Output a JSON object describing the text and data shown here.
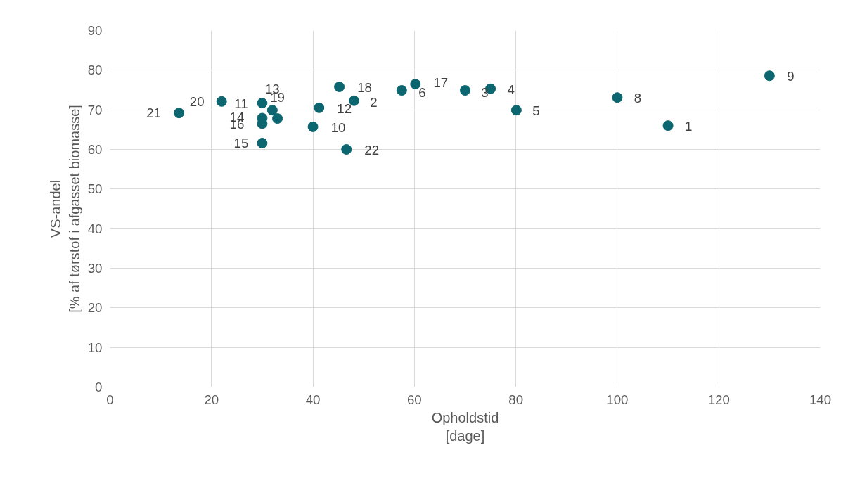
{
  "chart_data": {
    "type": "scatter",
    "xlabel": "Opholdstid\n[dage]",
    "ylabel": "VS-andel\n[% af tørstof i afgasset biomasse]",
    "x": [
      13.6,
      22,
      30,
      32,
      33,
      30,
      30,
      30,
      40,
      41.2,
      45.2,
      46.6,
      48.1,
      57.5,
      60.2,
      70,
      75,
      80.1,
      100,
      110,
      130
    ],
    "values": [
      69.2,
      72.1,
      71.7,
      69.9,
      67.8,
      67.9,
      66.5,
      61.6,
      65.7,
      70.5,
      75.8,
      60.0,
      72.3,
      74.9,
      76.5,
      74.9,
      75.3,
      69.9,
      73.1,
      66.0,
      78.6
    ],
    "annotations": [
      {
        "text": "21",
        "x": 13.6,
        "y": 69.2
      },
      {
        "text": "20",
        "x": 22,
        "y": 72.1
      },
      {
        "text": "11",
        "x": 30,
        "y": 71.7
      },
      {
        "text": "13",
        "x": 32,
        "y": 69.9
      },
      {
        "text": "19",
        "x": 33,
        "y": 67.8
      },
      {
        "text": "14",
        "x": 30,
        "y": 67.9
      },
      {
        "text": "16",
        "x": 30,
        "y": 66.5
      },
      {
        "text": "15",
        "x": 30,
        "y": 61.6
      },
      {
        "text": "10",
        "x": 40,
        "y": 65.7
      },
      {
        "text": "12",
        "x": 41.2,
        "y": 70.5
      },
      {
        "text": "18",
        "x": 45.2,
        "y": 75.8
      },
      {
        "text": "22",
        "x": 46.6,
        "y": 60.0
      },
      {
        "text": "2",
        "x": 48.1,
        "y": 72.3
      },
      {
        "text": "6",
        "x": 57.5,
        "y": 74.9
      },
      {
        "text": "17",
        "x": 60.2,
        "y": 76.5
      },
      {
        "text": "3",
        "x": 70,
        "y": 74.9
      },
      {
        "text": "4",
        "x": 75,
        "y": 75.3
      },
      {
        "text": "5",
        "x": 80.1,
        "y": 69.9
      },
      {
        "text": "8",
        "x": 100,
        "y": 73.1
      },
      {
        "text": "1",
        "x": 110,
        "y": 66.0
      },
      {
        "text": "9",
        "x": 130,
        "y": 78.6
      }
    ],
    "color": "#0b6670",
    "marker": "circle",
    "grid": true,
    "xlim": [
      0,
      140
    ],
    "xticks": [
      0,
      20,
      40,
      60,
      80,
      100,
      120,
      140
    ],
    "ylim": [
      0,
      90
    ],
    "yticks": [
      0,
      10,
      20,
      30,
      40,
      50,
      60,
      70,
      80,
      90
    ]
  }
}
